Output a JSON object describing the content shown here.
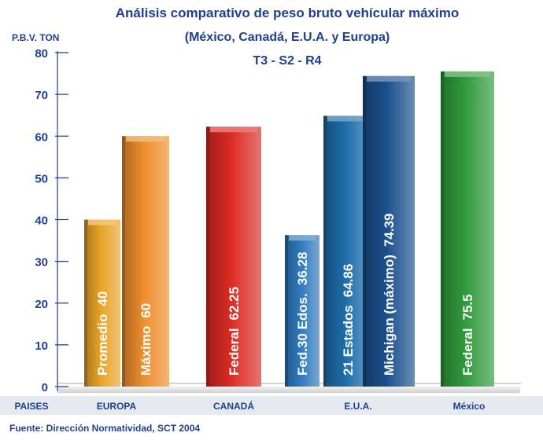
{
  "chart_data": {
    "type": "bar",
    "title": "Análisis comparativo de peso bruto vehícular máximo",
    "subtitle": "(México, Canadá, E.U.A. y Europa)",
    "subtitle2": "T3 - S2 - R4",
    "ylabel": "P.B.V. TON",
    "xlabel": "PAISES",
    "ylim": [
      0,
      80
    ],
    "yticks": [
      0,
      10,
      20,
      30,
      40,
      50,
      60,
      70,
      80
    ],
    "grid": false,
    "legend": "none",
    "categories": [
      "EUROPA",
      "CANADÁ",
      "E.U.A.",
      "México"
    ],
    "bars": [
      {
        "category": "EUROPA",
        "label": "Promedio",
        "value": 40,
        "value_text": "40",
        "color": "#e9a327"
      },
      {
        "category": "EUROPA",
        "label": "Máximo",
        "value": 60,
        "value_text": "60",
        "color": "#ee8e2c"
      },
      {
        "category": "CANADÁ",
        "label": "Federal",
        "value": 62.25,
        "value_text": "62.25",
        "color": "#dc2a23"
      },
      {
        "category": "E.U.A.",
        "label": "Fed.30 Edos.",
        "value": 36.28,
        "value_text": "36.28",
        "color": "#2f79bd"
      },
      {
        "category": "E.U.A.",
        "label": "21 Estados",
        "value": 64.86,
        "value_text": "64.86",
        "color": "#1e6daa"
      },
      {
        "category": "E.U.A.",
        "label": "Michigan (máximo)",
        "value": 74.39,
        "value_text": "74.39",
        "color": "#1a4f8c"
      },
      {
        "category": "México",
        "label": "Federal",
        "value": 75.5,
        "value_text": "75.5",
        "color": "#2f9a3c"
      }
    ],
    "source": "Fuente: Dirección Normatividad, SCT 2004"
  }
}
